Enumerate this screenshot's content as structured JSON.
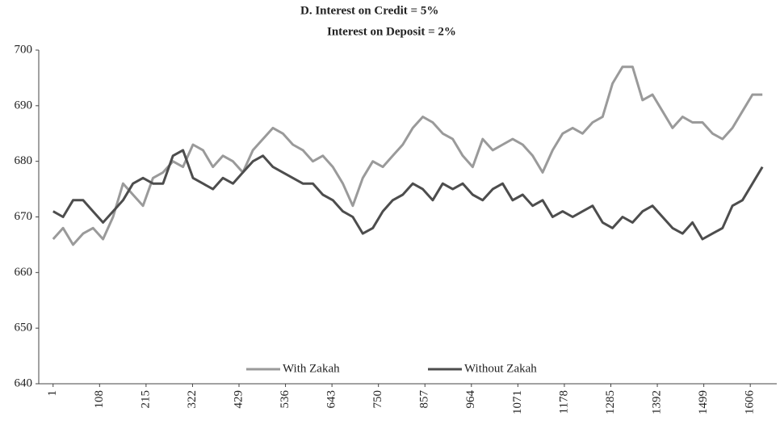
{
  "chart_data": {
    "type": "line",
    "title": "D.   Interest on Credit   = 5%",
    "subtitle": "Interest on Deposit  = 2%",
    "x": [
      1,
      24,
      47,
      70,
      93,
      116,
      139,
      162,
      185,
      208,
      231,
      254,
      277,
      300,
      323,
      346,
      369,
      392,
      415,
      438,
      461,
      484,
      507,
      530,
      553,
      576,
      599,
      622,
      645,
      668,
      691,
      714,
      737,
      760,
      783,
      806,
      829,
      852,
      875,
      898,
      921,
      944,
      967,
      990,
      1013,
      1036,
      1059,
      1082,
      1105,
      1128,
      1151,
      1174,
      1197,
      1220,
      1243,
      1266,
      1289,
      1312,
      1335,
      1358,
      1381,
      1404,
      1427,
      1450,
      1473,
      1496,
      1519,
      1542,
      1565,
      1588,
      1611,
      1634
    ],
    "series": [
      {
        "name": "With Zakah",
        "color": "#9a9a9a",
        "values": [
          666,
          668,
          665,
          667,
          668,
          666,
          670,
          676,
          674,
          672,
          677,
          678,
          680,
          679,
          683,
          682,
          679,
          681,
          680,
          678,
          682,
          684,
          686,
          685,
          683,
          682,
          680,
          681,
          679,
          676,
          672,
          677,
          680,
          679,
          681,
          683,
          686,
          688,
          687,
          685,
          684,
          681,
          679,
          684,
          682,
          683,
          684,
          683,
          681,
          678,
          682,
          685,
          686,
          685,
          687,
          688,
          694,
          697,
          697,
          691,
          692,
          689,
          686,
          688,
          687,
          687,
          685,
          684,
          686,
          689,
          692,
          692
        ]
      },
      {
        "name": "Without Zakah",
        "color": "#4d4d4d",
        "values": [
          671,
          670,
          673,
          673,
          671,
          669,
          671,
          673,
          676,
          677,
          676,
          676,
          681,
          682,
          677,
          676,
          675,
          677,
          676,
          678,
          680,
          681,
          679,
          678,
          677,
          676,
          676,
          674,
          673,
          671,
          670,
          667,
          668,
          671,
          673,
          674,
          676,
          675,
          673,
          676,
          675,
          676,
          674,
          673,
          675,
          676,
          673,
          674,
          672,
          673,
          670,
          671,
          670,
          671,
          672,
          669,
          668,
          670,
          669,
          671,
          672,
          670,
          668,
          667,
          669,
          666,
          667,
          668,
          672,
          673,
          676,
          679
        ]
      }
    ],
    "xlim": [
      -32,
      1667
    ],
    "xticks": [
      1,
      108,
      215,
      322,
      429,
      536,
      643,
      750,
      857,
      964,
      1071,
      1178,
      1285,
      1392,
      1499,
      1606
    ],
    "ylim": [
      640,
      700
    ],
    "yticks": [
      640,
      650,
      660,
      670,
      680,
      690,
      700
    ],
    "grid": false,
    "legend": "bottom"
  }
}
